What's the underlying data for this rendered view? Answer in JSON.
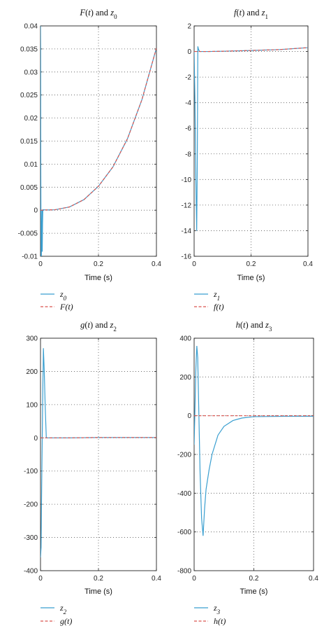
{
  "chart_data": [
    {
      "type": "line",
      "title": "F(t) and z0",
      "title_parts": [
        "F",
        "(",
        "t",
        ") and ",
        "z",
        "0"
      ],
      "xlabel": "Time (s)",
      "xlim": [
        0,
        0.4
      ],
      "ylim": [
        -0.01,
        0.04
      ],
      "xticks": [
        0,
        0.2,
        0.4
      ],
      "xtick_labels": [
        "0",
        "0.2",
        "0.4"
      ],
      "yticks": [
        -0.01,
        -0.005,
        0,
        0.005,
        0.01,
        0.015,
        0.02,
        0.025,
        0.03,
        0.035,
        0.04
      ],
      "ytick_labels": [
        "-0.01",
        "-0.005",
        "0",
        "0.005",
        "0.01",
        "0.015",
        "0.02",
        "0.025",
        "0.03",
        "0.035",
        "0.04"
      ],
      "grid": true,
      "legend": [
        {
          "name": "z",
          "sub": "0",
          "color": "#3a9fd0",
          "dash": false
        },
        {
          "name": "F(t)",
          "sub": "",
          "color": "#d9534f",
          "dash": true
        }
      ],
      "series": [
        {
          "name": "z0",
          "color": "#3a9fd0",
          "dash": false,
          "x": [
            0,
            0.0005,
            0.001,
            0.002,
            0.003,
            0.004,
            0.005,
            0.006,
            0.007,
            0.008,
            0.01,
            0.02,
            0.05,
            0.1,
            0.15,
            0.2,
            0.25,
            0.3,
            0.35,
            0.4
          ],
          "y": [
            0.04,
            0.035,
            0.01,
            -0.01,
            -0.01,
            -0.005,
            0,
            -0.009,
            -0.003,
            0.0001,
            0.0001,
            5e-05,
            0.0001,
            0.0007,
            0.0023,
            0.0052,
            0.0094,
            0.0155,
            0.024,
            0.0352
          ]
        },
        {
          "name": "F(t)",
          "color": "#d9534f",
          "dash": true,
          "x": [
            0,
            0.02,
            0.05,
            0.1,
            0.15,
            0.2,
            0.25,
            0.3,
            0.35,
            0.4
          ],
          "y": [
            0,
            5e-05,
            0.0001,
            0.0007,
            0.0023,
            0.0052,
            0.0094,
            0.0155,
            0.024,
            0.0352
          ]
        }
      ]
    },
    {
      "type": "line",
      "title": "f(t) and z1",
      "title_parts": [
        "f",
        "(",
        "t",
        ") and ",
        "z",
        "1"
      ],
      "xlabel": "Time (s)",
      "xlim": [
        0,
        0.4
      ],
      "ylim": [
        -16,
        2
      ],
      "xticks": [
        0,
        0.2,
        0.4
      ],
      "xtick_labels": [
        "0",
        "0.2",
        "0.4"
      ],
      "yticks": [
        -16,
        -14,
        -12,
        -10,
        -8,
        -6,
        -4,
        -2,
        0,
        2
      ],
      "ytick_labels": [
        "-16",
        "-14",
        "-12",
        "-10",
        "-8",
        "-6",
        "-4",
        "-2",
        "0",
        "2"
      ],
      "grid": true,
      "legend": [
        {
          "name": "z",
          "sub": "1",
          "color": "#3a9fd0",
          "dash": false
        },
        {
          "name": "f(t)",
          "sub": "",
          "color": "#d9534f",
          "dash": true
        }
      ],
      "series": [
        {
          "name": "z1",
          "color": "#3a9fd0",
          "dash": false,
          "x": [
            0,
            0.003,
            0.006,
            0.009,
            0.011,
            0.013,
            0.015,
            0.018,
            0.02,
            0.05,
            0.1,
            0.2,
            0.3,
            0.4
          ],
          "y": [
            0,
            -4,
            -10,
            -14,
            -9,
            0.4,
            0.2,
            0.05,
            0,
            0,
            0.02,
            0.08,
            0.15,
            0.3
          ]
        },
        {
          "name": "f(t)",
          "color": "#d9534f",
          "dash": true,
          "x": [
            0,
            0.05,
            0.1,
            0.2,
            0.3,
            0.4
          ],
          "y": [
            0,
            0,
            0.02,
            0.08,
            0.15,
            0.3
          ]
        }
      ]
    },
    {
      "type": "line",
      "title": "g(t) and z2",
      "title_parts": [
        "g",
        "(",
        "t",
        ") and ",
        "z",
        "2"
      ],
      "xlabel": "Time (s)",
      "xlim": [
        0,
        0.4
      ],
      "ylim": [
        -400,
        300
      ],
      "xticks": [
        0,
        0.2,
        0.4
      ],
      "xtick_labels": [
        "0",
        "0.2",
        "0.4"
      ],
      "yticks": [
        -400,
        -300,
        -200,
        -100,
        0,
        100,
        200,
        300
      ],
      "ytick_labels": [
        "-400",
        "-300",
        "-200",
        "-100",
        "0",
        "100",
        "200",
        "300"
      ],
      "grid": true,
      "legend": [
        {
          "name": "z",
          "sub": "2",
          "color": "#3a9fd0",
          "dash": false
        },
        {
          "name": "g(t)",
          "sub": "",
          "color": "#d9534f",
          "dash": true
        }
      ],
      "series": [
        {
          "name": "z2",
          "color": "#3a9fd0",
          "dash": false,
          "x": [
            0,
            0.002,
            0.004,
            0.006,
            0.008,
            0.01,
            0.013,
            0.016,
            0.02,
            0.05,
            0.1,
            0.2,
            0.3,
            0.4
          ],
          "y": [
            -360,
            -330,
            -150,
            0,
            150,
            270,
            200,
            100,
            0,
            0,
            0,
            1,
            1,
            1
          ]
        },
        {
          "name": "g(t)",
          "color": "#d9534f",
          "dash": true,
          "x": [
            0,
            0.1,
            0.2,
            0.3,
            0.4
          ],
          "y": [
            0,
            0,
            1,
            1,
            1
          ]
        }
      ]
    },
    {
      "type": "line",
      "title": "h(t) and z3",
      "title_parts": [
        "h",
        "(",
        "t",
        ") and ",
        "z",
        "3"
      ],
      "xlabel": "Time (s)",
      "xlim": [
        0,
        0.4
      ],
      "ylim": [
        -800,
        400
      ],
      "xticks": [
        0,
        0.2,
        0.4
      ],
      "xtick_labels": [
        "0",
        "0.2",
        "0.4"
      ],
      "yticks": [
        -800,
        -600,
        -400,
        -200,
        0,
        200,
        400
      ],
      "ytick_labels": [
        "-800",
        "-600",
        "-400",
        "-200",
        "0",
        "200",
        "400"
      ],
      "grid": true,
      "legend": [
        {
          "name": "z",
          "sub": "3",
          "color": "#3a9fd0",
          "dash": false
        },
        {
          "name": "h(t)",
          "sub": "",
          "color": "#d9534f",
          "dash": true
        }
      ],
      "series": [
        {
          "name": "z3",
          "color": "#3a9fd0",
          "dash": false,
          "x": [
            0,
            0.003,
            0.006,
            0.009,
            0.012,
            0.016,
            0.02,
            0.025,
            0.03,
            0.035,
            0.04,
            0.05,
            0.06,
            0.08,
            0.1,
            0.13,
            0.16,
            0.2,
            0.3,
            0.4
          ],
          "y": [
            -150,
            50,
            250,
            360,
            300,
            0,
            -300,
            -530,
            -620,
            -480,
            -380,
            -280,
            -200,
            -100,
            -55,
            -25,
            -12,
            -5,
            -3,
            -3
          ]
        },
        {
          "name": "h(t)",
          "color": "#d9534f",
          "dash": true,
          "x": [
            0,
            0.1,
            0.2,
            0.3,
            0.4
          ],
          "y": [
            0,
            0,
            0,
            0,
            0
          ]
        }
      ]
    }
  ]
}
